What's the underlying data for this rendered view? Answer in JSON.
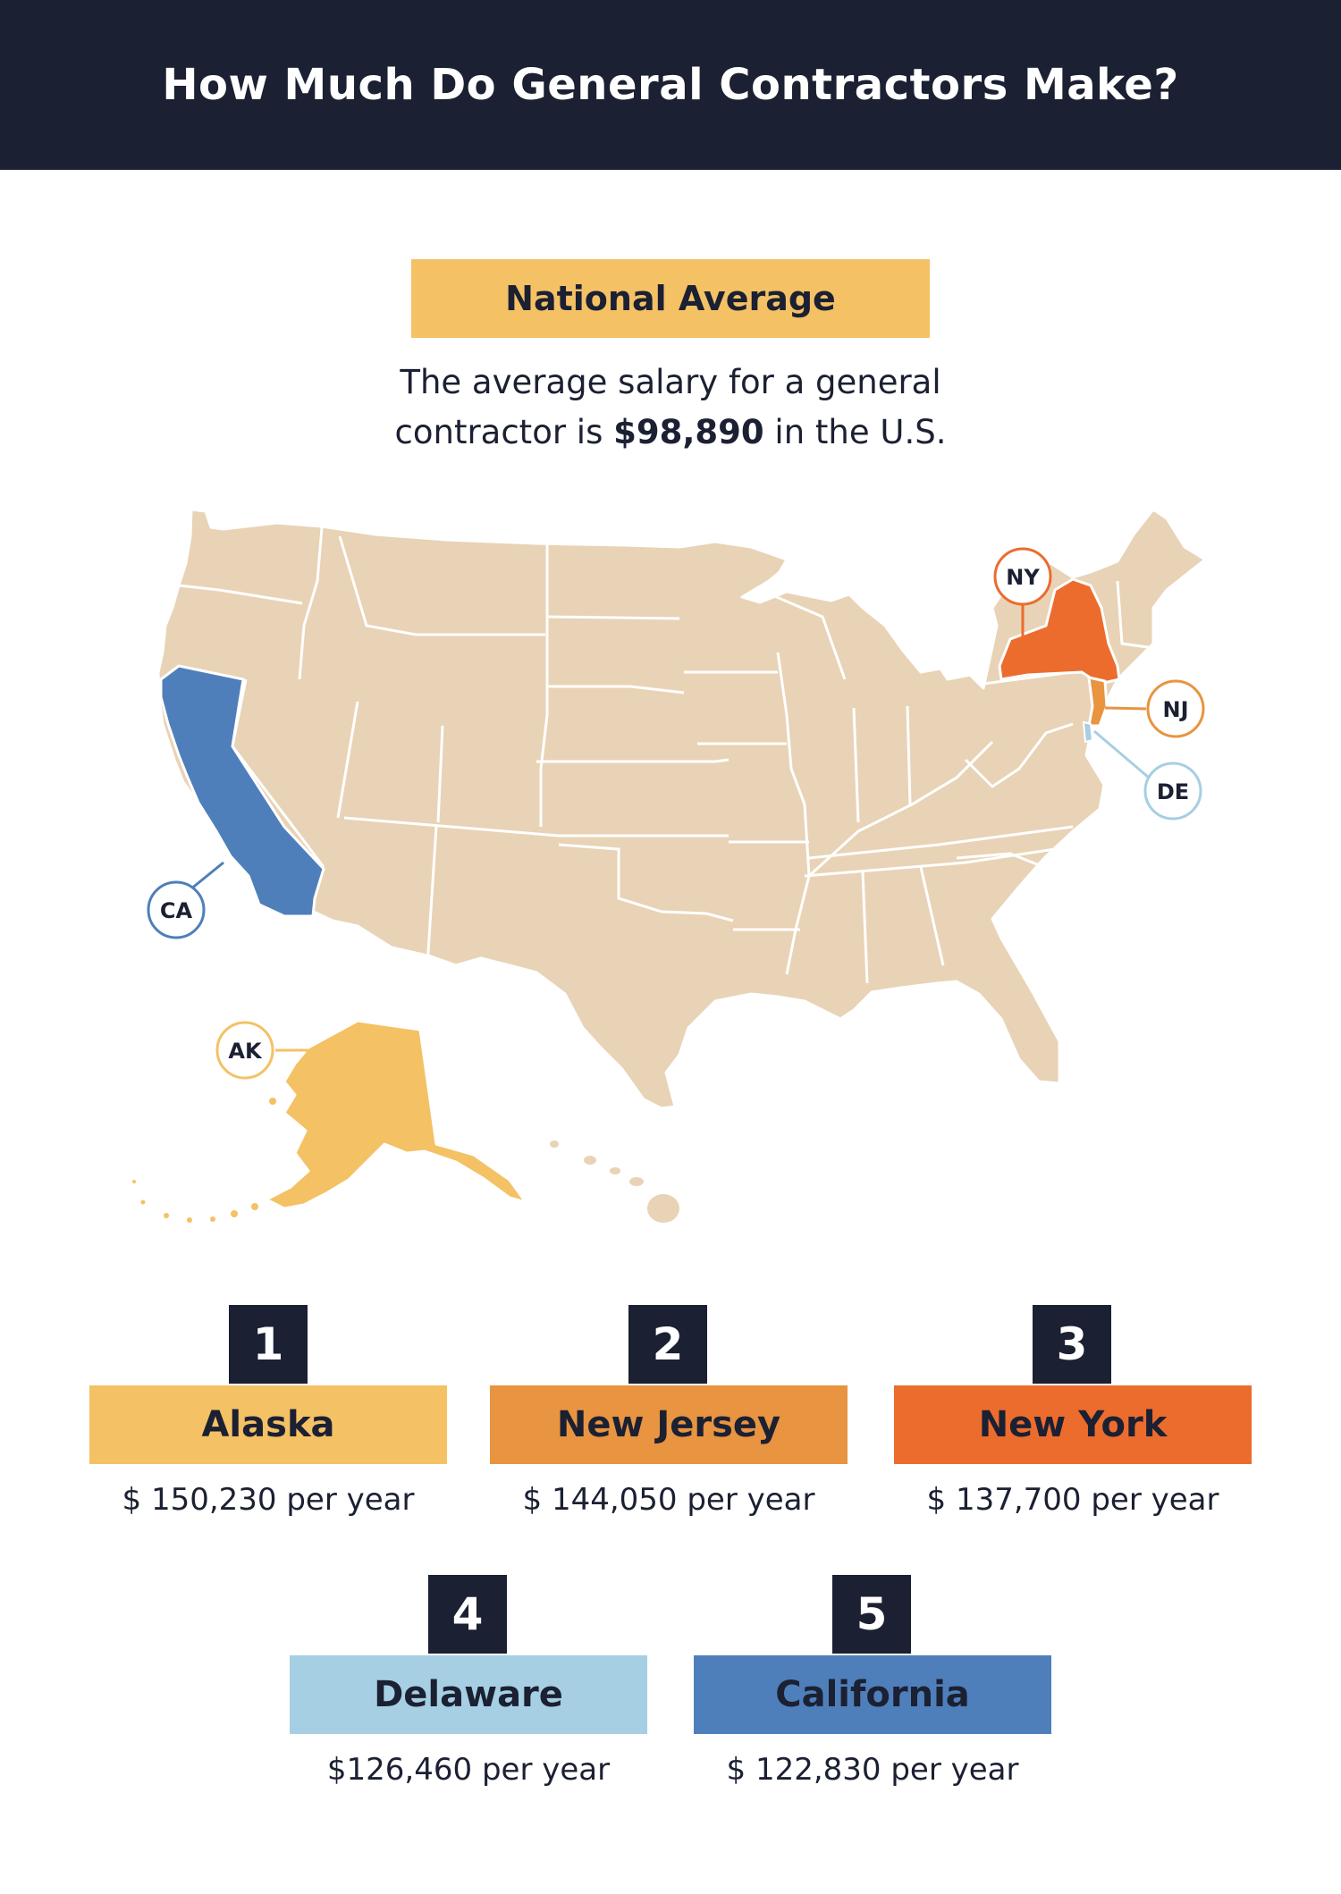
{
  "header": {
    "title": "How Much Do General Contractors Make?"
  },
  "national_average": {
    "label": "National Average",
    "text_line1": "The average salary for a general",
    "text_before": "contractor is ",
    "amount": "$98,890",
    "text_after": " in the U.S."
  },
  "map": {
    "callouts": {
      "ny": "NY",
      "nj": "NJ",
      "de": "DE",
      "ca": "CA",
      "ak": "AK"
    },
    "colors": {
      "base": "#e8d3b6",
      "alaska": "#f4c165",
      "new_jersey": "#e89440",
      "new_york": "#ec6c2e",
      "delaware": "#a6cfe3",
      "california": "#4f7fba"
    }
  },
  "rankings": [
    {
      "rank": "1",
      "state": "Alaska",
      "salary": "$ 150,230 per year",
      "color": "#f4c165"
    },
    {
      "rank": "2",
      "state": "New Jersey",
      "salary": "$ 144,050 per year",
      "color": "#e89440"
    },
    {
      "rank": "3",
      "state": "New York",
      "salary": "$ 137,700 per year",
      "color": "#ec6c2e"
    },
    {
      "rank": "4",
      "state": "Delaware",
      "salary": "$126,460 per year",
      "color": "#a6cfe3"
    },
    {
      "rank": "5",
      "state": "California",
      "salary": "$ 122,830 per year",
      "color": "#4f7fba"
    }
  ]
}
